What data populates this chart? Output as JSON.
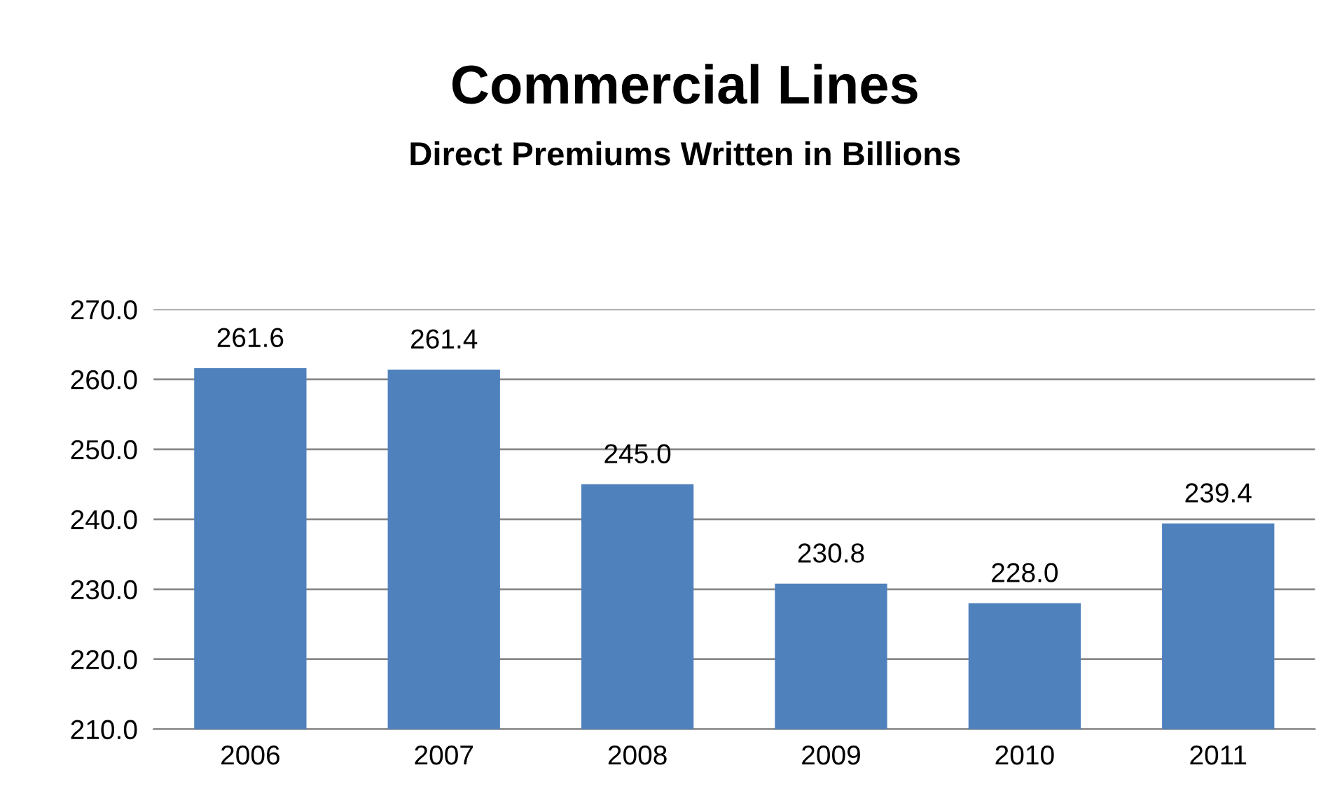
{
  "chart_data": {
    "type": "bar",
    "title": "Commercial Lines",
    "subtitle": "Direct Premiums Written in Billions",
    "categories": [
      "2006",
      "2007",
      "2008",
      "2009",
      "2010",
      "2011"
    ],
    "values": [
      261.6,
      261.4,
      245.0,
      230.8,
      228.0,
      239.4
    ],
    "color": "#4f81bd",
    "ylim": [
      210,
      270
    ],
    "yticks": [
      {
        "value": 210,
        "label": "210.0"
      },
      {
        "value": 220,
        "label": "220.0"
      },
      {
        "value": 230,
        "label": "230.0"
      },
      {
        "value": 240,
        "label": "240.0"
      },
      {
        "value": 250,
        "label": "250.0"
      },
      {
        "value": 260,
        "label": "260.0"
      },
      {
        "value": 270,
        "label": "270.0"
      }
    ],
    "value_labels": [
      "261.6",
      "261.4",
      "245.0",
      "230.8",
      "228.0",
      "239.4"
    ],
    "grid": "y",
    "legend": false
  }
}
